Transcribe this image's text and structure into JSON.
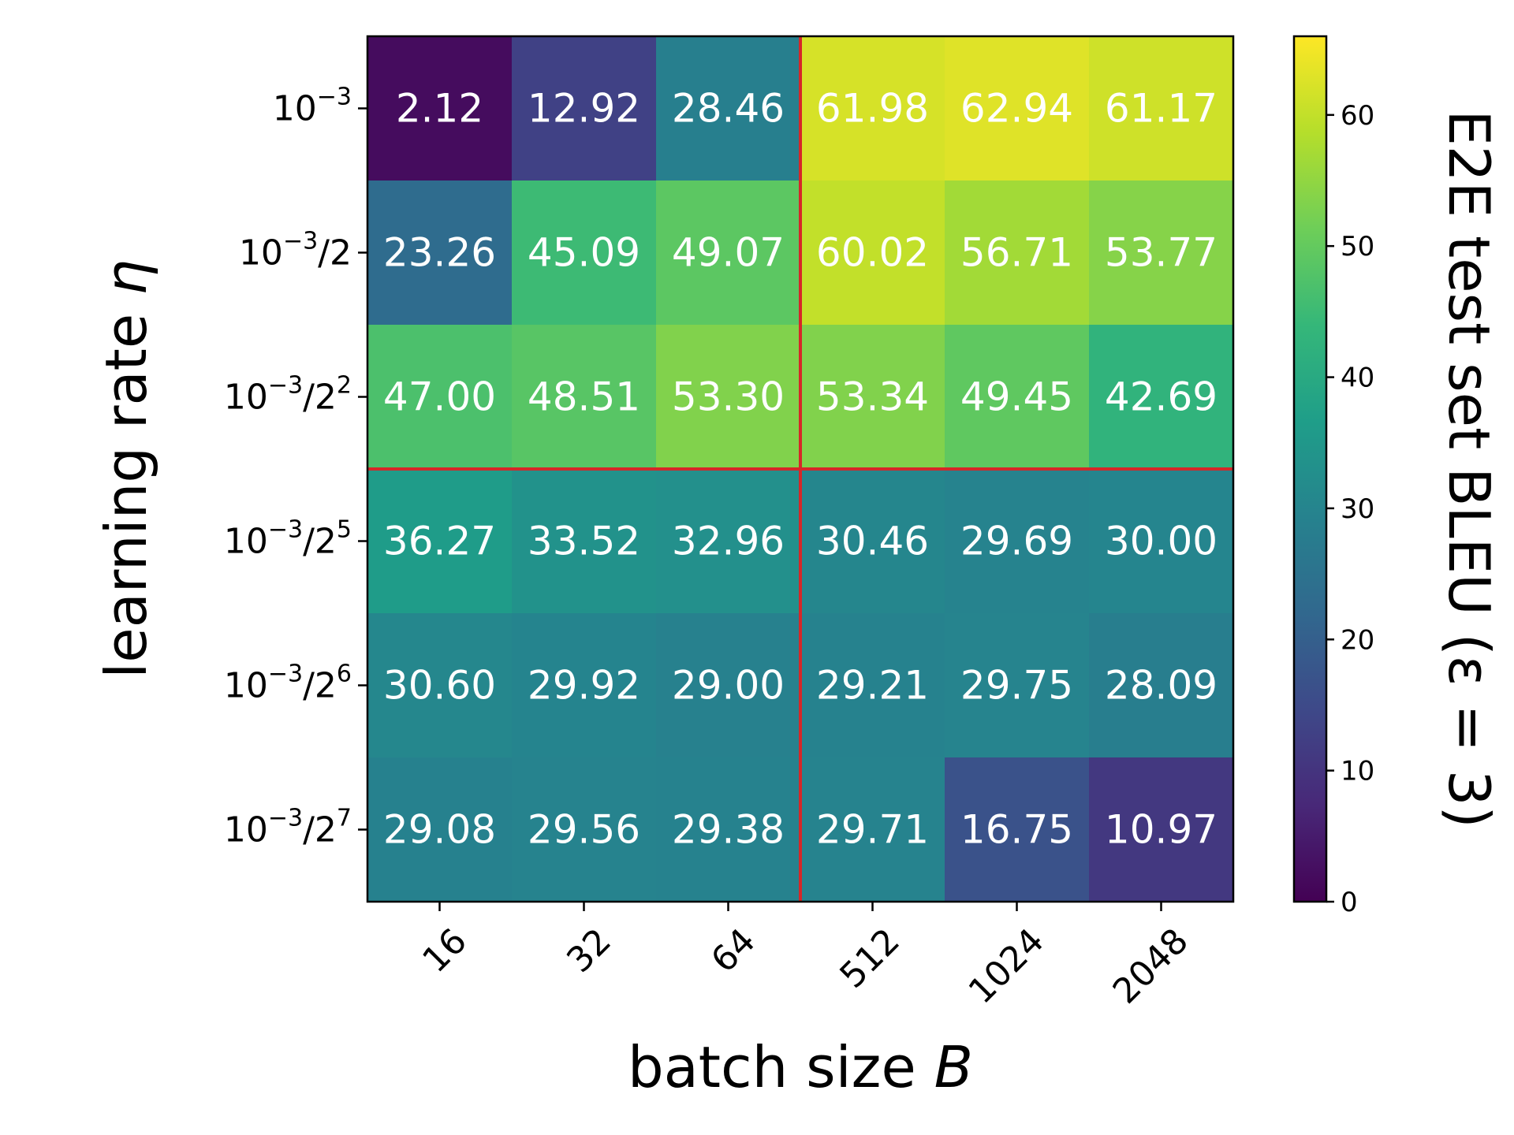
{
  "chart_data": {
    "type": "heatmap",
    "xlabel": "batch size",
    "xlabel_symbol": "B",
    "ylabel": "learning rate",
    "ylabel_symbol": "η",
    "colorbar_label": "E2E test set BLEU (ε = 3)",
    "colormap": "viridis",
    "vmin": 0,
    "vmax": 66,
    "colorbar_ticks": [
      0,
      10,
      20,
      30,
      40,
      50,
      60
    ],
    "x_categories": [
      "16",
      "32",
      "64",
      "512",
      "1024",
      "2048"
    ],
    "y_categories": [
      {
        "base": "10",
        "exp": "−3",
        "div_base": "",
        "div_exp": ""
      },
      {
        "base": "10",
        "exp": "−3",
        "div_base": "/2",
        "div_exp": ""
      },
      {
        "base": "10",
        "exp": "−3",
        "div_base": "/2",
        "div_exp": "2"
      },
      {
        "base": "10",
        "exp": "−3",
        "div_base": "/2",
        "div_exp": "5"
      },
      {
        "base": "10",
        "exp": "−3",
        "div_base": "/2",
        "div_exp": "6"
      },
      {
        "base": "10",
        "exp": "−3",
        "div_base": "/2",
        "div_exp": "7"
      }
    ],
    "values": [
      [
        2.12,
        12.92,
        28.46,
        61.98,
        62.94,
        61.17
      ],
      [
        23.26,
        45.09,
        49.07,
        60.02,
        56.71,
        53.77
      ],
      [
        47.0,
        48.51,
        53.3,
        53.34,
        49.45,
        42.69
      ],
      [
        36.27,
        33.52,
        32.96,
        30.46,
        29.69,
        30.0
      ],
      [
        30.6,
        29.92,
        29.0,
        29.21,
        29.75,
        28.09
      ],
      [
        29.08,
        29.56,
        29.38,
        29.71,
        16.75,
        10.97
      ]
    ],
    "value_labels": [
      [
        "2.12",
        "12.92",
        "28.46",
        "61.98",
        "62.94",
        "61.17"
      ],
      [
        "23.26",
        "45.09",
        "49.07",
        "60.02",
        "56.71",
        "53.77"
      ],
      [
        "47.00",
        "48.51",
        "53.30",
        "53.34",
        "49.45",
        "42.69"
      ],
      [
        "36.27",
        "33.52",
        "32.96",
        "30.46",
        "29.69",
        "30.00"
      ],
      [
        "30.60",
        "29.92",
        "29.00",
        "29.21",
        "29.75",
        "28.09"
      ],
      [
        "29.08",
        "29.56",
        "29.38",
        "29.71",
        "16.75",
        "10.97"
      ]
    ],
    "divider_lines": {
      "vertical_between_columns": [
        "64",
        "512"
      ],
      "horizontal_between_rows": [
        "10⁻³/2²",
        "10⁻³/2⁵"
      ],
      "color": "#d62728"
    }
  }
}
